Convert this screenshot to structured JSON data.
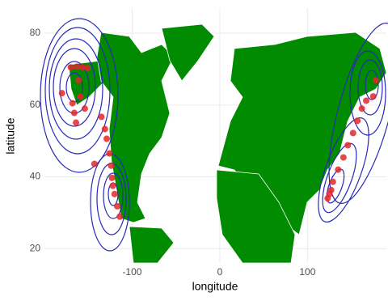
{
  "chart_data": {
    "type": "scatter",
    "x_label": "longitude",
    "y_label": "latitude",
    "xlim": [
      -200,
      190
    ],
    "ylim": [
      16,
      87
    ],
    "xticks": [
      -100,
      0,
      100
    ],
    "yticks": [
      20,
      40,
      60,
      80
    ],
    "grid": true,
    "color": "#e3262b",
    "x": [
      -180,
      -170,
      -163,
      -157,
      -151,
      -168,
      -166,
      -164,
      -161,
      -159,
      -154,
      -135,
      -131,
      -129,
      -126,
      -124,
      -143,
      -122,
      -120,
      -117,
      -114,
      -123,
      125,
      129,
      135,
      141,
      146,
      152,
      157,
      162,
      167,
      175,
      178,
      127,
      123
    ],
    "values": [
      63.3,
      70.5,
      70.7,
      70.5,
      70.3,
      60.5,
      57.8,
      55.1,
      66.9,
      62.4,
      59,
      56.7,
      53.3,
      50.6,
      46.5,
      43.1,
      43.6,
      37.5,
      35.2,
      31.8,
      28.9,
      39.7,
      35.2,
      38.6,
      42,
      45.4,
      48.8,
      52.2,
      55.6,
      59,
      61.2,
      62.4,
      66.9,
      36.3,
      34
    ]
  }
}
